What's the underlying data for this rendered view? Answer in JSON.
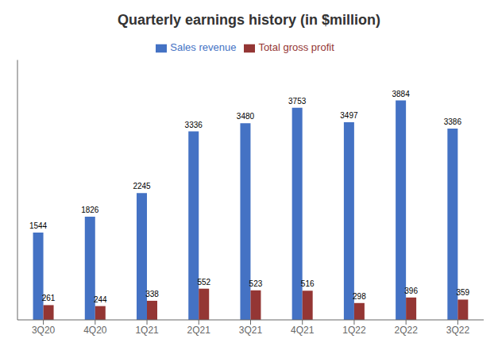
{
  "chart_data": {
    "type": "bar",
    "title": "Quarterly earnings history (in $million)",
    "categories": [
      "3Q20",
      "4Q20",
      "1Q21",
      "2Q21",
      "3Q21",
      "4Q21",
      "1Q22",
      "2Q22",
      "3Q22"
    ],
    "series": [
      {
        "name": "Sales revenue",
        "color": "#4472C4",
        "values": [
          1544,
          1826,
          2245,
          3336,
          3480,
          3753,
          3497,
          3884,
          3386
        ]
      },
      {
        "name": "Total gross profit",
        "color": "#943634",
        "values": [
          261,
          244,
          338,
          552,
          523,
          516,
          298,
          396,
          359
        ]
      }
    ],
    "ylim": [
      0,
      4600
    ],
    "grid": false,
    "legend": "top",
    "data_labels": true,
    "tick_labels": "x"
  }
}
